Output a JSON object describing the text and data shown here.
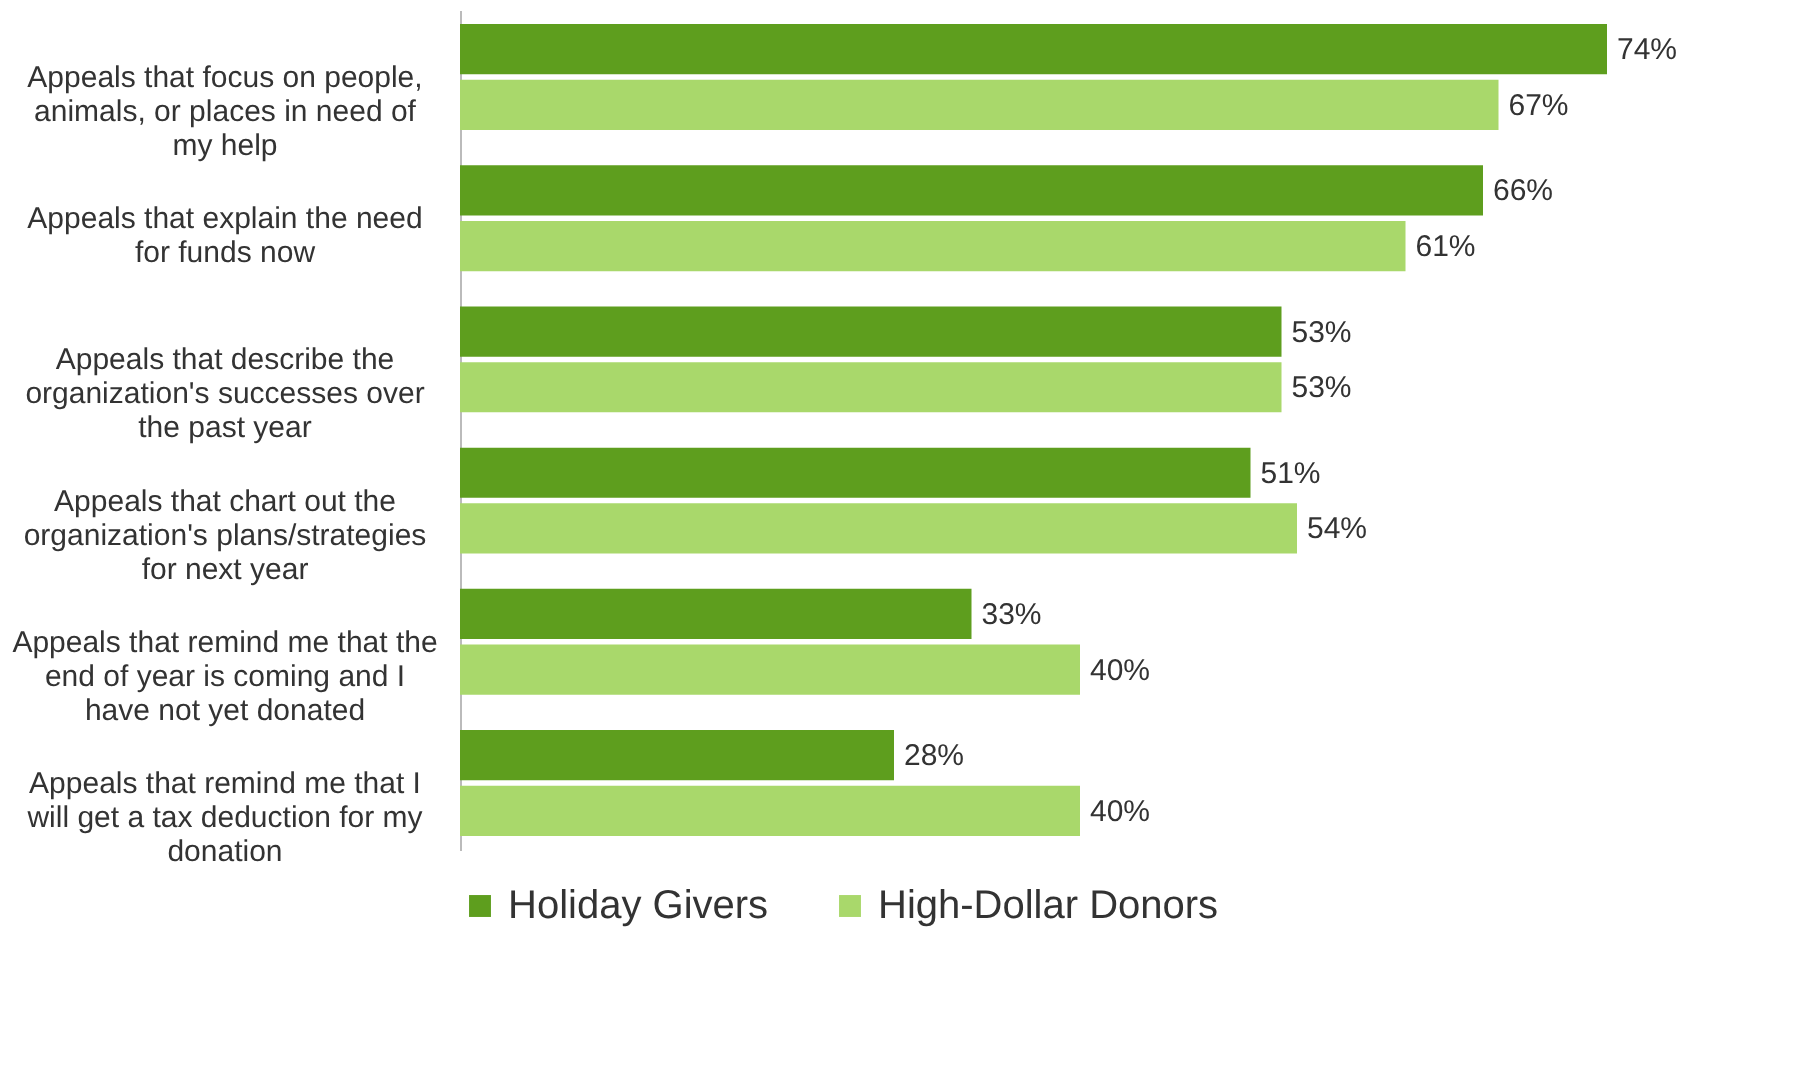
{
  "chart_data": {
    "type": "bar",
    "orientation": "horizontal",
    "categories": [
      "Appeals that focus on people, animals, or places in need of my help",
      "Appeals that explain the need for funds now",
      "Appeals that describe the organization's successes over the past year",
      "Appeals that chart out the organization's plans/strategies for next year",
      "Appeals that remind me that the end of year is coming and I have not yet donated",
      "Appeals that remind me that I will get a tax deduction for my donation"
    ],
    "series": [
      {
        "name": "Holiday Givers",
        "color": "#5e9e1e",
        "values": [
          74,
          66,
          53,
          51,
          33,
          28
        ],
        "value_labels": [
          "74%",
          "66%",
          "53%",
          "51%",
          "33%",
          "28%"
        ]
      },
      {
        "name": "High-Dollar Donors",
        "color": "#a9d86b",
        "values": [
          67,
          61,
          53,
          54,
          40,
          40
        ],
        "value_labels": [
          "67%",
          "61%",
          "53%",
          "54%",
          "40%",
          "40%"
        ]
      }
    ],
    "legend": "bottom",
    "grid": false
  }
}
